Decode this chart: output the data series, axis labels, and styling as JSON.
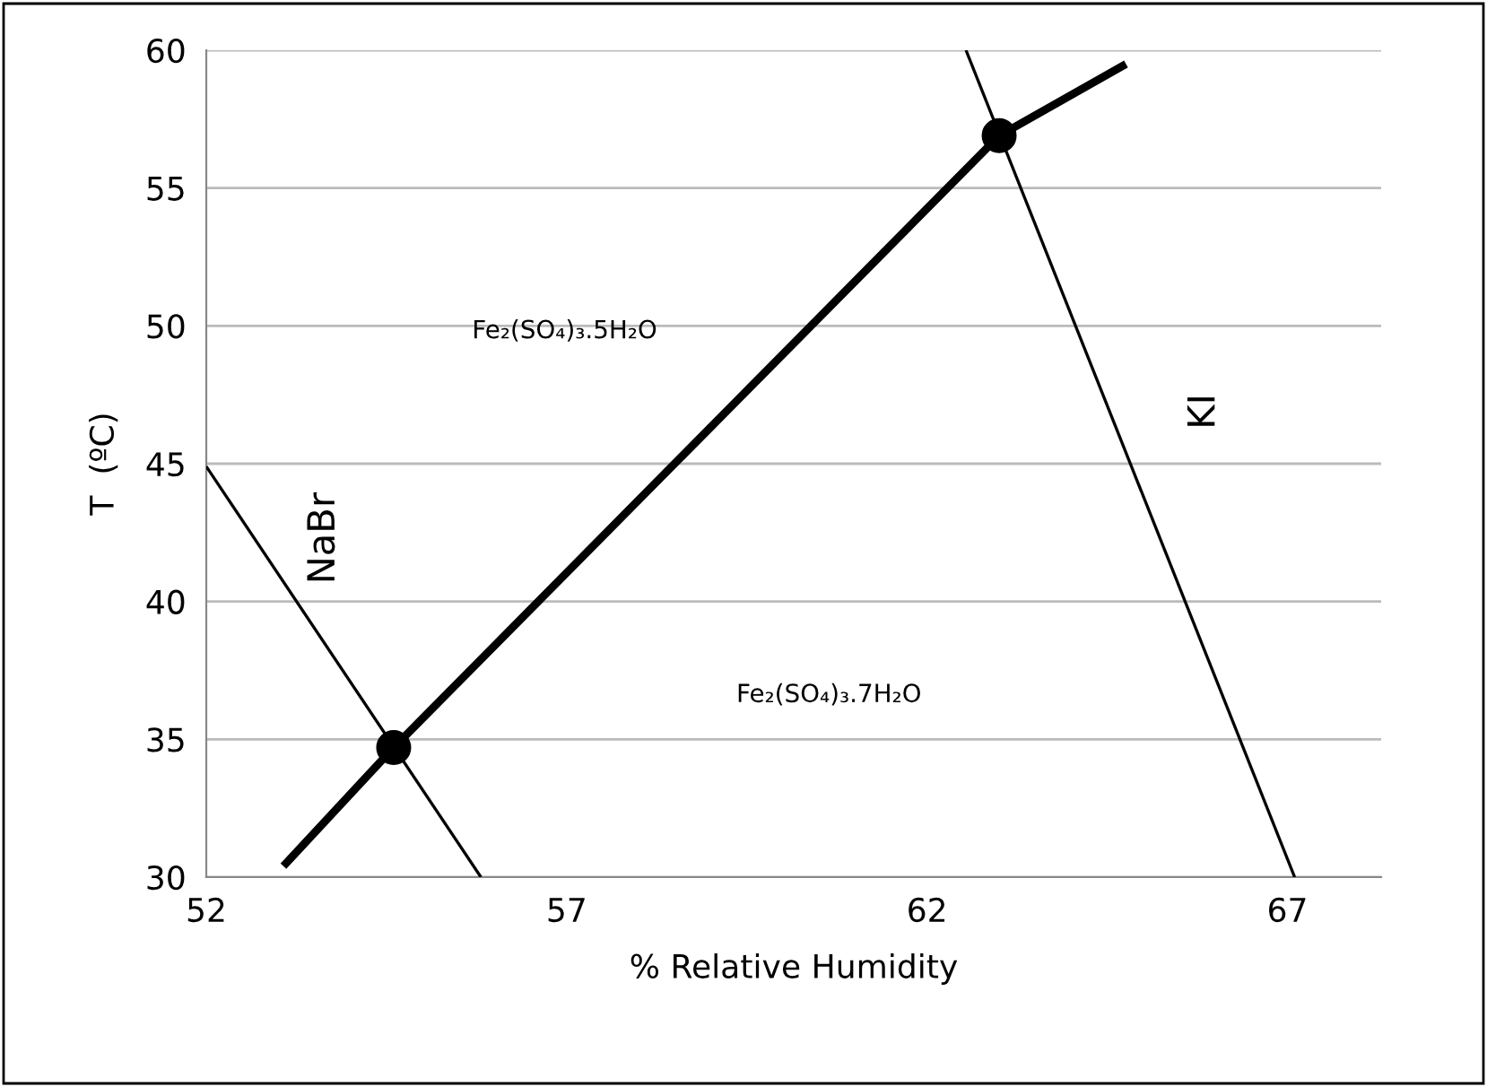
{
  "chart_data": {
    "type": "line",
    "xlabel": "% Relative Humidity",
    "ylabel": "T  (ºC)",
    "xlim": [
      52,
      68.3
    ],
    "xticks": [
      52,
      57,
      62,
      67
    ],
    "ylim": [
      30,
      60
    ],
    "yticks": [
      30,
      35,
      40,
      45,
      50,
      55,
      60
    ],
    "grid": "y",
    "series": [
      {
        "x": [
          53.07,
          54.6,
          63.0,
          64.76
        ],
        "values": [
          30.4,
          34.7,
          56.9,
          59.5
        ],
        "color": "#000000"
      },
      {
        "name": "NaBr",
        "x": [
          52,
          55.81
        ],
        "values": [
          44.9,
          30
        ],
        "color": "#000000"
      },
      {
        "name": "KI",
        "x": [
          62.54,
          67.1
        ],
        "values": [
          60,
          30
        ],
        "color": "#000000"
      },
      {
        "x": [
          54.6,
          63.0
        ],
        "values": [
          34.7,
          56.9
        ],
        "color": "#000000",
        "type": "scatter",
        "marker": "circle"
      }
    ],
    "annotations": [
      "Fe₂(SO₄)₃.5H₂O",
      "Fe₂(SO₄)₃.7H₂O"
    ]
  }
}
